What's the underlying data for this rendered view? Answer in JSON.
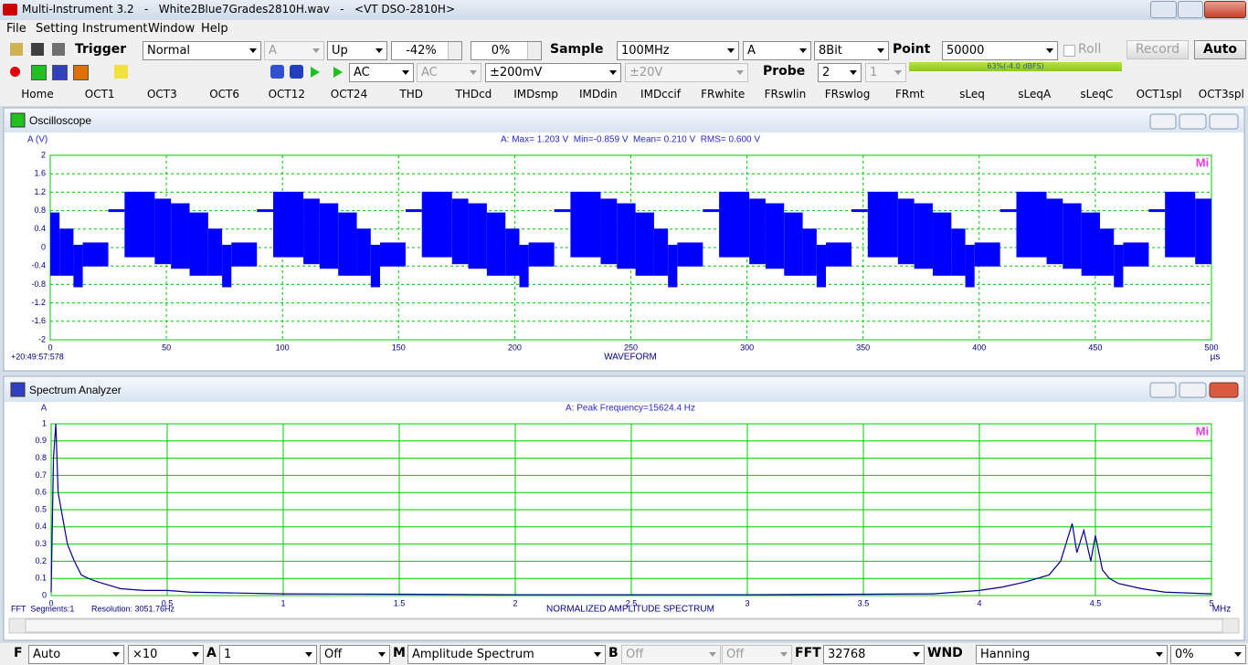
{
  "title_bar": {
    "title": "Multi-Instrument 3.2   -   White2Blue7Grades2810H.wav   -   <VT DSO-2810H>"
  },
  "menu": [
    "File",
    "Setting",
    "Instrument",
    "Window",
    "Help"
  ],
  "toolbar": {
    "trigger_label": "Trigger",
    "trigger_mode": "Normal",
    "trigger_channel": "A",
    "trigger_edge": "Up",
    "trigger_level": "-42%",
    "trigger_delay": "0%",
    "sample_label": "Sample",
    "sample_rate": "100MHz",
    "sample_channel": "A",
    "bit_depth": "8Bit",
    "point_label": "Point",
    "points": "50000",
    "roll": "Roll",
    "record": "Record",
    "auto": "Auto"
  },
  "toolbar2": {
    "coupling_a": "AC",
    "coupling_b": "AC",
    "range_a": "±200mV",
    "range_b": "±20V",
    "probe_label": "Probe",
    "probe_a": "2",
    "probe_b": "1",
    "level_meter": "63%(-4.0 dBFS)"
  },
  "tabs": [
    "Home",
    "OCT1",
    "OCT3",
    "OCT6",
    "OCT12",
    "OCT24",
    "THD",
    "THDcd",
    "IMDsmp",
    "IMDdin",
    "IMDccif",
    "FRwhite",
    "FRswlin",
    "FRswlog",
    "FRmt",
    "sLeq",
    "sLeqA",
    "sLeqC",
    "OCT1spl",
    "OCT3spl"
  ],
  "chart_data": [
    {
      "type": "band",
      "window_title": "Oscilloscope",
      "ylabel": "A (V)",
      "title": "A: Max= 1.203 V  Min=-0.859 V  Mean= 0.210 V  RMS= 0.600 V",
      "xlabel": "WAVEFORM",
      "x_unit": "µs",
      "timestamp": "+20:49:57:578",
      "logo": "Mi",
      "xlim": [
        0,
        500
      ],
      "xticks": [
        0,
        50,
        100,
        150,
        200,
        250,
        300,
        350,
        400,
        450,
        500
      ],
      "ylim": [
        -2,
        2
      ],
      "yticks": [
        2,
        1.6,
        1.2,
        0.8,
        0.4,
        0,
        -0.4,
        -0.8,
        -1.2,
        -1.6,
        -2
      ],
      "grid": true,
      "grid_dash": true,
      "grid_color": "#00c800",
      "color": "#0000ff",
      "bins": [
        0,
        4,
        10,
        14,
        25,
        32,
        45,
        52,
        60,
        68,
        74,
        78,
        89,
        96,
        109,
        116,
        124,
        132,
        138,
        142,
        153,
        160,
        173,
        180,
        188,
        196,
        202,
        206,
        217,
        224,
        237,
        244,
        252,
        260,
        266,
        270,
        281,
        288,
        301,
        308,
        316,
        324,
        330,
        334,
        345,
        352,
        365,
        372,
        380,
        388,
        394,
        398,
        409,
        416,
        429,
        436,
        444,
        452,
        458,
        462,
        473,
        480,
        493,
        500
      ],
      "upper": [
        0.75,
        0.4,
        0.05,
        0.1,
        0.82,
        1.2,
        1.05,
        0.95,
        0.75,
        0.4,
        0.05,
        0.1,
        0.82,
        1.2,
        1.05,
        0.95,
        0.75,
        0.4,
        0.05,
        0.1,
        0.82,
        1.2,
        1.05,
        0.95,
        0.75,
        0.4,
        0.05,
        0.1,
        0.82,
        1.2,
        1.05,
        0.95,
        0.75,
        0.4,
        0.05,
        0.1,
        0.82,
        1.2,
        1.05,
        0.95,
        0.75,
        0.4,
        0.05,
        0.1,
        0.82,
        1.2,
        1.05,
        0.95,
        0.75,
        0.4,
        0.05,
        0.1,
        0.82,
        1.2,
        1.05,
        0.95,
        0.75,
        0.4,
        0.05,
        0.1,
        0.82,
        1.2,
        1.05
      ],
      "lower": [
        -0.6,
        -0.6,
        -0.85,
        -0.4,
        0.78,
        -0.2,
        -0.35,
        -0.45,
        -0.6,
        -0.6,
        -0.85,
        -0.4,
        0.78,
        -0.2,
        -0.35,
        -0.45,
        -0.6,
        -0.6,
        -0.85,
        -0.4,
        0.78,
        -0.2,
        -0.35,
        -0.45,
        -0.6,
        -0.6,
        -0.85,
        -0.4,
        0.78,
        -0.2,
        -0.35,
        -0.45,
        -0.6,
        -0.6,
        -0.85,
        -0.4,
        0.78,
        -0.2,
        -0.35,
        -0.45,
        -0.6,
        -0.6,
        -0.85,
        -0.4,
        0.78,
        -0.2,
        -0.35,
        -0.45,
        -0.6,
        -0.6,
        -0.85,
        -0.4,
        0.78,
        -0.2,
        -0.35,
        -0.45,
        -0.6,
        -0.6,
        -0.85,
        -0.4,
        0.78,
        -0.2,
        -0.35
      ]
    },
    {
      "type": "line",
      "window_title": "Spectrum Analyzer",
      "ylabel": "A",
      "title": "A: Peak Frequency=15624.4 Hz",
      "xlabel": "NORMALIZED AMPLITUDE SPECTRUM",
      "x_unit": "MHz",
      "segments": "FFT  Segments:1",
      "resolution": "Resolution: 3051.76Hz",
      "logo": "Mi",
      "xlim": [
        0,
        5
      ],
      "xticks": [
        0,
        0.5,
        1,
        1.5,
        2,
        2.5,
        3,
        3.5,
        4,
        4.5,
        5
      ],
      "ylim": [
        0,
        1
      ],
      "yticks": [
        1,
        0.9,
        0.8,
        0.7,
        0.6,
        0.5,
        0.4,
        0.3,
        0.2,
        0.1,
        0
      ],
      "grid": true,
      "grid_dash": false,
      "grid_color": "#00c800",
      "color": "#00008b",
      "x": [
        0,
        0.01,
        0.02,
        0.03,
        0.05,
        0.07,
        0.1,
        0.13,
        0.16,
        0.2,
        0.25,
        0.3,
        0.4,
        0.5,
        0.6,
        0.8,
        1.0,
        1.5,
        2.0,
        2.5,
        3.0,
        3.5,
        3.8,
        4.0,
        4.1,
        4.2,
        4.3,
        4.35,
        4.4,
        4.42,
        4.45,
        4.48,
        4.5,
        4.53,
        4.56,
        4.6,
        4.7,
        4.8,
        5.0
      ],
      "values": [
        0.02,
        0.8,
        1.0,
        0.6,
        0.45,
        0.3,
        0.2,
        0.12,
        0.1,
        0.08,
        0.06,
        0.04,
        0.03,
        0.03,
        0.02,
        0.015,
        0.01,
        0.008,
        0.005,
        0.005,
        0.005,
        0.008,
        0.01,
        0.03,
        0.05,
        0.08,
        0.12,
        0.2,
        0.42,
        0.25,
        0.38,
        0.2,
        0.35,
        0.15,
        0.1,
        0.07,
        0.04,
        0.02,
        0.01
      ]
    }
  ],
  "status_bar": {
    "freq_label": "F",
    "freq_scale": "Auto",
    "zoom": "×10",
    "ch_a_label": "A",
    "ch_a": "1",
    "ch_a_mode": "Off",
    "mode_label": "M",
    "mode": "Amplitude Spectrum",
    "ch_b_label": "B",
    "ch_b": "Off",
    "ch_b_mode": "Off",
    "fft_label": "FFT",
    "fft_size": "32768",
    "wnd_label": "WND",
    "window": "Hanning",
    "overlap": "0%"
  }
}
